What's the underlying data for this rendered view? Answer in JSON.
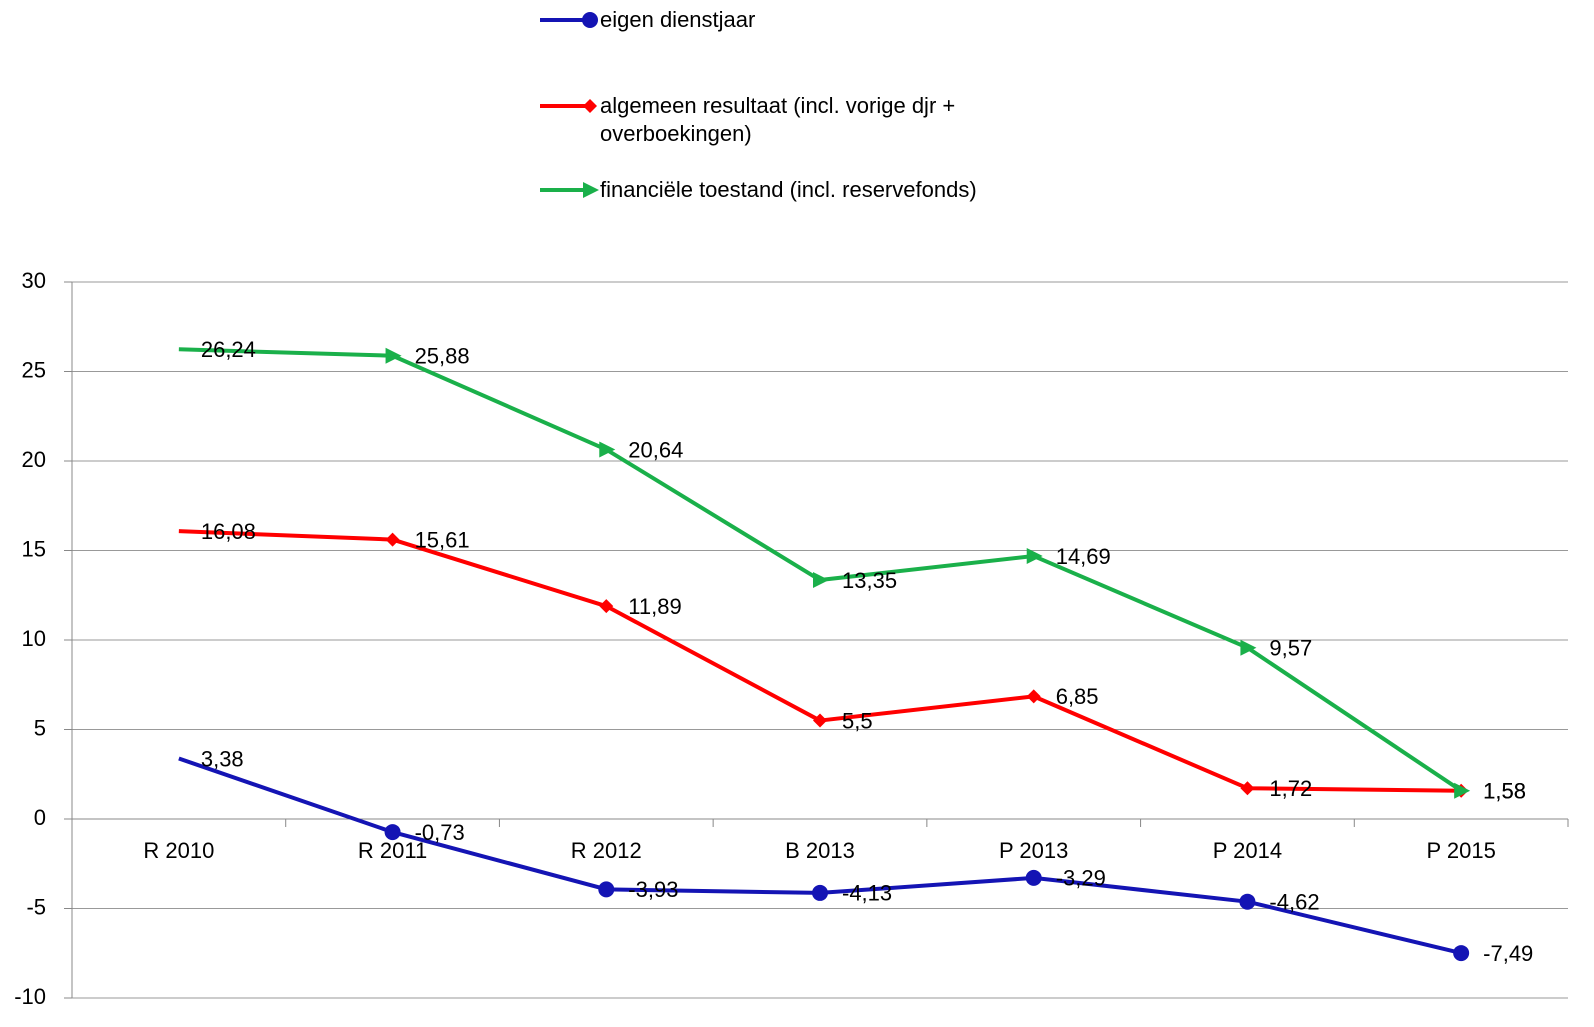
{
  "chart_data": {
    "type": "line",
    "categories": [
      "R 2010",
      "R 2011",
      "R 2012",
      "B 2013",
      "P 2013",
      "P 2014",
      "P 2015"
    ],
    "series": [
      {
        "name": "eigen dienstjaar",
        "color": "#1414b4",
        "marker": "circle",
        "values": [
          3.38,
          -0.73,
          -3.93,
          -4.13,
          -3.29,
          -4.62,
          -7.49
        ],
        "value_labels": [
          "3,38",
          "-0,73",
          "-3,93",
          "-4,13",
          "-3,29",
          "-4,62",
          "-7,49"
        ]
      },
      {
        "name": "algemeen resultaat (incl. vorige djr + overboekingen)",
        "color": "#ff0000",
        "marker": "diamond",
        "values": [
          16.08,
          15.61,
          11.89,
          5.5,
          6.85,
          1.72,
          1.58
        ],
        "value_labels": [
          "16,08",
          "15,61",
          "11,89",
          "5,5",
          "6,85",
          "1,72",
          "1,58"
        ]
      },
      {
        "name": "financiële toestand (incl. reservefonds)",
        "color": "#1ab04a",
        "marker": "triangle",
        "values": [
          26.24,
          25.88,
          20.64,
          13.35,
          14.69,
          9.57,
          1.58
        ],
        "value_labels": [
          "26,24",
          "25,88",
          "20,64",
          "13,35",
          "14,69",
          "9,57",
          "1,58"
        ]
      }
    ],
    "ylim": [
      -10,
      30
    ],
    "yticks": [
      -10,
      -5,
      0,
      5,
      10,
      15,
      20,
      25,
      30
    ],
    "grid": true
  }
}
